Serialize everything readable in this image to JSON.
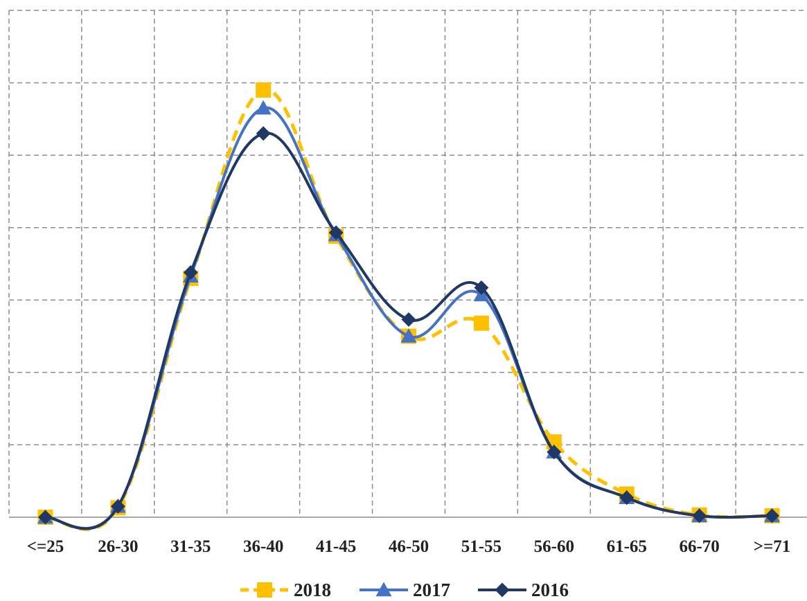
{
  "chart_data": {
    "type": "line",
    "title": "",
    "xlabel": "",
    "ylabel": "",
    "categories": [
      "<=25",
      "26-30",
      "31-35",
      "36-40",
      "41-45",
      "46-50",
      "51-55",
      "56-60",
      "61-65",
      "66-70",
      ">=71"
    ],
    "ylim": [
      0,
      7
    ],
    "grid": true,
    "legend_position": "bottom",
    "series": [
      {
        "name": "2018",
        "color": "#FFC000",
        "dash": "dashed",
        "marker": "square",
        "values": [
          0.0,
          0.13,
          3.3,
          5.9,
          3.88,
          2.5,
          2.68,
          1.04,
          0.32,
          0.03,
          0.02
        ]
      },
      {
        "name": "2017",
        "color": "#4472C4",
        "dash": "solid",
        "marker": "triangle",
        "values": [
          0.0,
          0.15,
          3.33,
          5.65,
          3.9,
          2.5,
          3.07,
          0.9,
          0.27,
          0.02,
          0.02
        ]
      },
      {
        "name": "2016",
        "color": "#1F3864",
        "dash": "solid",
        "marker": "diamond",
        "values": [
          0.0,
          0.15,
          3.38,
          5.3,
          3.93,
          2.73,
          3.17,
          0.9,
          0.27,
          0.02,
          0.02
        ]
      }
    ]
  }
}
